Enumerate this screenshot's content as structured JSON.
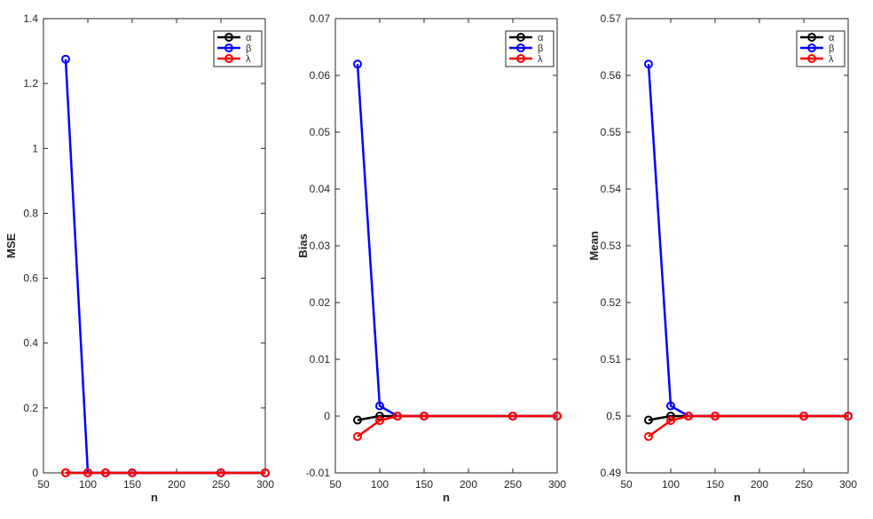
{
  "chart_data": [
    {
      "type": "line",
      "xlabel": "n",
      "ylabel": "MSE",
      "xlim": [
        50,
        300
      ],
      "ylim": [
        0,
        1.4
      ],
      "xticks": [
        "50",
        "100",
        "150",
        "200",
        "250",
        "300"
      ],
      "yticks": [
        "0",
        "0.2",
        "0.4",
        "0.6",
        "0.8",
        "1",
        "1.2",
        "1.4"
      ],
      "x": [
        75,
        100,
        120,
        150,
        250,
        300
      ],
      "grid": false,
      "legend_position": "top-right",
      "series": [
        {
          "name": "α",
          "color": "#000000",
          "values": [
            0,
            0,
            0,
            0,
            0,
            0
          ]
        },
        {
          "name": "β",
          "color": "#0000ff",
          "values": [
            1.275,
            0.0005,
            0,
            0,
            0,
            0
          ]
        },
        {
          "name": "λ",
          "color": "#ff0000",
          "values": [
            0.0005,
            0,
            0,
            0,
            0,
            0
          ]
        }
      ]
    },
    {
      "type": "line",
      "xlabel": "n",
      "ylabel": "Bias",
      "xlim": [
        50,
        300
      ],
      "ylim": [
        -0.01,
        0.07
      ],
      "xticks": [
        "50",
        "100",
        "150",
        "200",
        "250",
        "300"
      ],
      "yticks": [
        "-0.01",
        "0",
        "0.01",
        "0.02",
        "0.03",
        "0.04",
        "0.05",
        "0.06",
        "0.07"
      ],
      "x": [
        75,
        100,
        120,
        150,
        250,
        300
      ],
      "grid": false,
      "legend_position": "top-right",
      "series": [
        {
          "name": "α",
          "color": "#000000",
          "values": [
            -0.0007,
            0,
            0,
            0,
            0,
            0
          ]
        },
        {
          "name": "β",
          "color": "#0000ff",
          "values": [
            0.062,
            0.0018,
            0,
            0,
            0,
            0
          ]
        },
        {
          "name": "λ",
          "color": "#ff0000",
          "values": [
            -0.0036,
            -0.0008,
            0,
            0,
            0,
            0
          ]
        }
      ]
    },
    {
      "type": "line",
      "xlabel": "n",
      "ylabel": "Mean",
      "xlim": [
        50,
        300
      ],
      "ylim": [
        0.49,
        0.57
      ],
      "xticks": [
        "50",
        "100",
        "150",
        "200",
        "250",
        "300"
      ],
      "yticks": [
        "0.49",
        "0.5",
        "0.51",
        "0.52",
        "0.53",
        "0.54",
        "0.55",
        "0.56",
        "0.57"
      ],
      "x": [
        75,
        100,
        120,
        150,
        250,
        300
      ],
      "grid": false,
      "legend_position": "top-right",
      "series": [
        {
          "name": "α",
          "color": "#000000",
          "values": [
            0.4993,
            0.5,
            0.5,
            0.5,
            0.5,
            0.5
          ]
        },
        {
          "name": "β",
          "color": "#0000ff",
          "values": [
            0.562,
            0.5018,
            0.5,
            0.5,
            0.5,
            0.5
          ]
        },
        {
          "name": "λ",
          "color": "#ff0000",
          "values": [
            0.4964,
            0.4992,
            0.5,
            0.5,
            0.5,
            0.5
          ]
        }
      ]
    }
  ]
}
